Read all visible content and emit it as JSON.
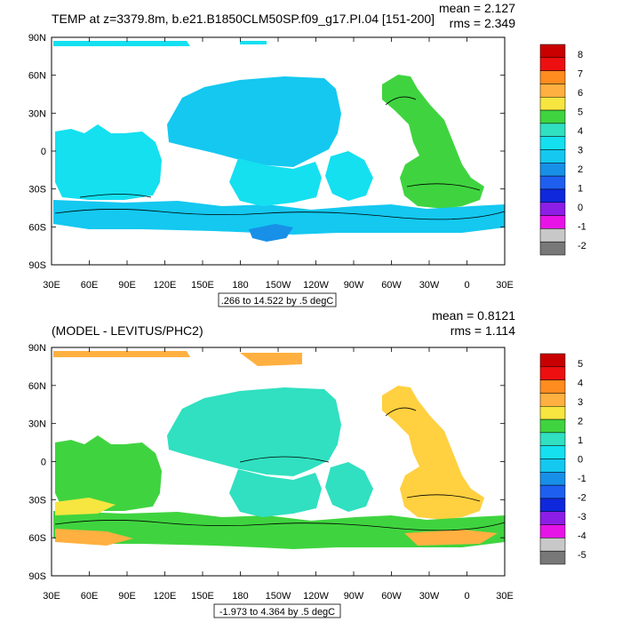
{
  "panels": [
    {
      "title": "TEMP at z=3379.8m, b.e21.B1850CLM50SP.f09_g17.PI.04 [151-200]",
      "mean": "mean = 2.127",
      "rms": "rms = 2.349",
      "range": ".266 to 14.522 by .5 degC",
      "labelbar": [
        "8",
        "7",
        "6",
        "5",
        "4",
        "3",
        "2",
        "1",
        "0",
        "-1",
        "-2"
      ],
      "colors": [
        "#c80000",
        "#ee1010",
        "#ff8c1e",
        "#ffb040",
        "#f7e640",
        "#3fd43f",
        "#30e0c0",
        "#14e0f0",
        "#14c8f0",
        "#1890e8",
        "#1e5ff0",
        "#0f28dc",
        "#8c1ee6",
        "#e614e6",
        "#c8c8c8",
        "#787878"
      ],
      "band_colors": {
        "arctic": "#14e0f0",
        "pacific": "#14c8f0",
        "atlantic": "#3fd43f",
        "indian": "#14e0f0",
        "southern": "#14c8f0",
        "sw_pacific": "#14e0f0"
      }
    },
    {
      "title": "(MODEL - LEVITUS/PHC2)",
      "mean": "mean = 0.8121",
      "rms": "rms = 1.114",
      "range": "-1.973 to 4.364 by .5 degC",
      "labelbar": [
        "5",
        "4",
        "3",
        "2",
        "1",
        "0",
        "-1",
        "-2",
        "-3",
        "-4",
        "-5"
      ],
      "colors": [
        "#c80000",
        "#ee1010",
        "#ff8c1e",
        "#ffb040",
        "#f7e640",
        "#3fd43f",
        "#30e0c0",
        "#14e0f0",
        "#14c8f0",
        "#1890e8",
        "#1e5ff0",
        "#0f28dc",
        "#8c1ee6",
        "#e614e6",
        "#c8c8c8",
        "#787878"
      ],
      "band_colors": {
        "arctic": "#ffb040",
        "pacific": "#30e0c0",
        "atlantic": "#ffd040",
        "indian": "#3fd43f",
        "southern": "#3fd43f",
        "sw_pacific": "#30e0c0"
      }
    }
  ],
  "lat_labels": [
    "90N",
    "60N",
    "30N",
    "0",
    "30S",
    "60S",
    "90S"
  ],
  "lon_labels": [
    "30E",
    "60E",
    "90E",
    "120E",
    "150E",
    "180",
    "150W",
    "120W",
    "90W",
    "60W",
    "30W",
    "0",
    "30E"
  ]
}
